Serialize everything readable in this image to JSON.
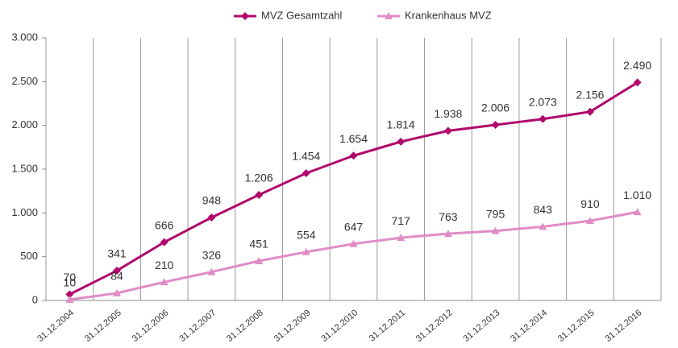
{
  "chart_data": {
    "type": "line",
    "categories": [
      "31.12.2004",
      "31.12.2005",
      "31.12.2006",
      "31.12.2007",
      "31.12.2008",
      "31.12.2009",
      "31.12.2010",
      "31.12.2011",
      "31.12.2012",
      "31.12.2013",
      "31.12.2014",
      "31.12.2015",
      "31.12.2016"
    ],
    "series": [
      {
        "name": "MVZ Gesamtzahl",
        "color": "#b0086b",
        "marker": "diamond",
        "values": [
          70,
          341,
          666,
          948,
          1206,
          1454,
          1654,
          1814,
          1938,
          2006,
          2073,
          2156,
          2490
        ],
        "value_labels": [
          "70",
          "341",
          "666",
          "948",
          "1.206",
          "1.454",
          "1.654",
          "1.814",
          "1.938",
          "2.006",
          "2.073",
          "2.156",
          "2.490"
        ]
      },
      {
        "name": "Krankenhaus MVZ",
        "color": "#e08cc6",
        "marker": "triangle",
        "values": [
          10,
          84,
          210,
          326,
          451,
          554,
          647,
          717,
          763,
          795,
          843,
          910,
          1010
        ],
        "value_labels": [
          "10",
          "84",
          "210",
          "326",
          "451",
          "554",
          "647",
          "717",
          "763",
          "795",
          "843",
          "910",
          "1.010"
        ]
      }
    ],
    "ylim": [
      0,
      3000
    ],
    "yticks": [
      0,
      500,
      {
        "value": 1000,
        "label": "1.000"
      },
      {
        "value": 1500,
        "label": "1.500"
      },
      {
        "value": 2000,
        "label": "2.000"
      },
      {
        "value": 2500,
        "label": "2.500"
      },
      {
        "value": 3000,
        "label": "3.000"
      }
    ],
    "legend": "top"
  }
}
